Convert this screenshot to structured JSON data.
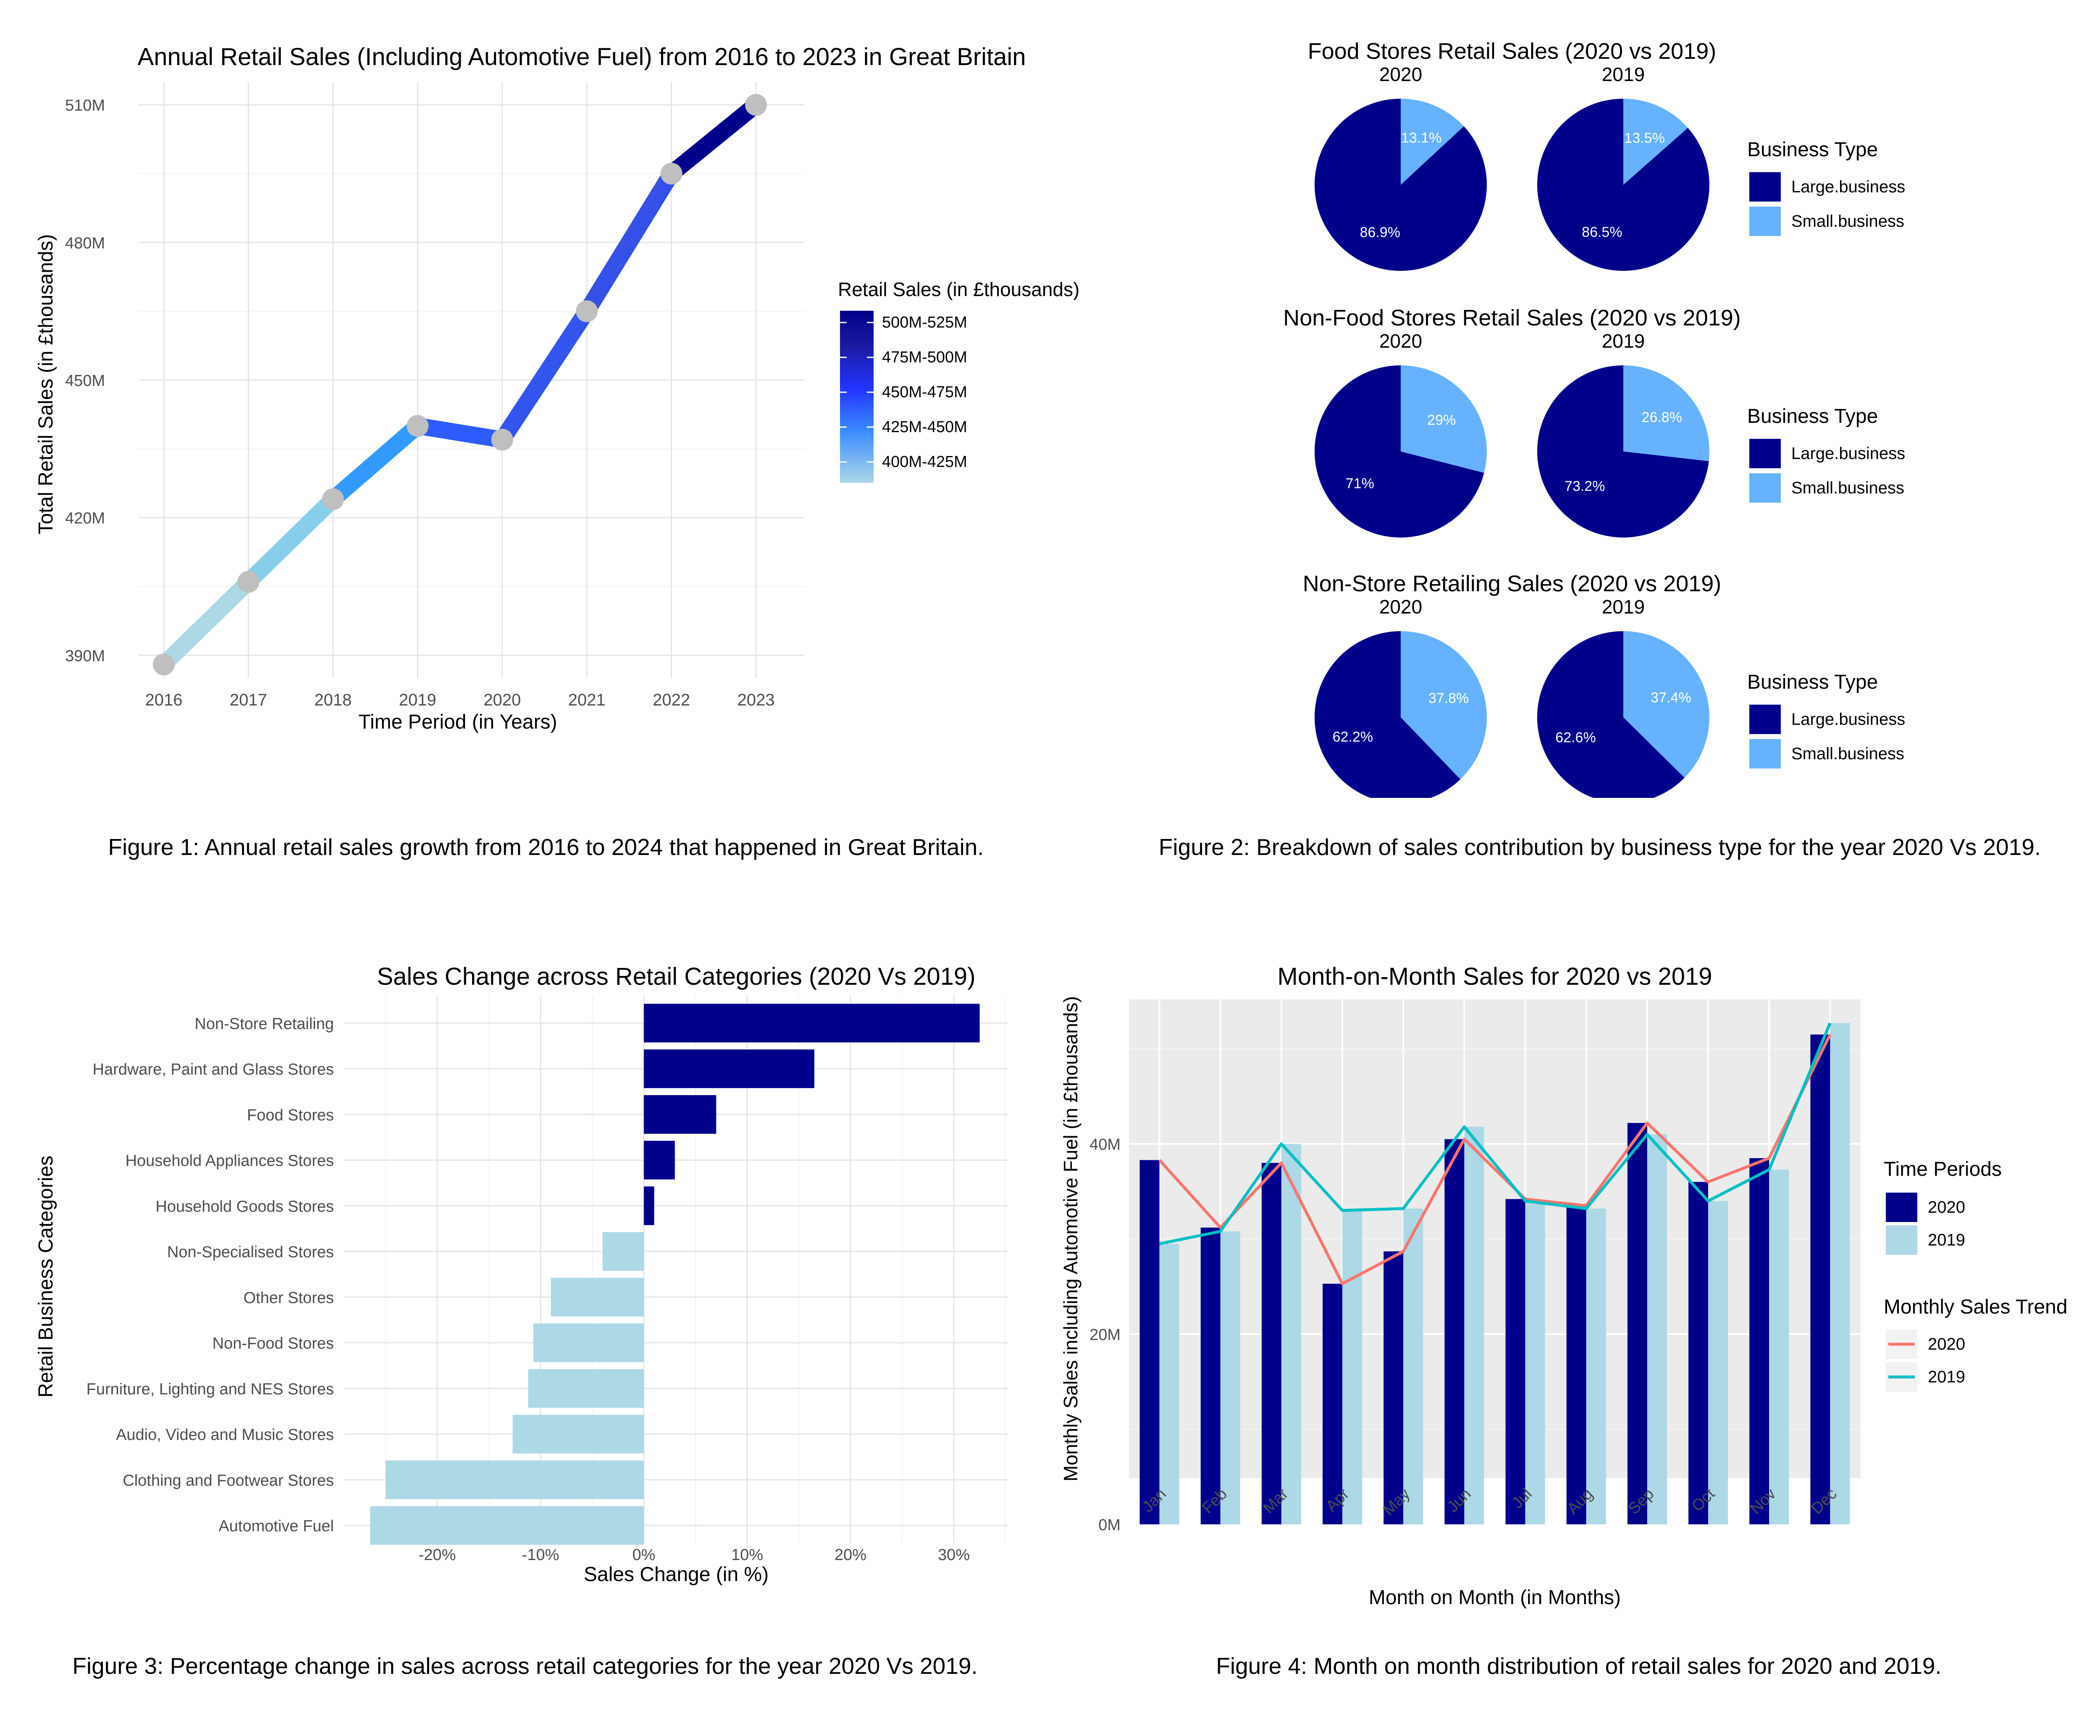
{
  "figures": {
    "fig1": {
      "caption": "Figure 1: Annual retail sales growth from 2016 to 2024 that happened in Great Britain.",
      "chart_data": {
        "type": "line",
        "title": "Annual Retail Sales (Including Automotive Fuel) from 2016 to 2023 in Great Britain",
        "xlabel": "Time Period (in Years)",
        "ylabel": "Total Retail Sales (in £thousands)",
        "x": [
          "2016",
          "2017",
          "2018",
          "2019",
          "2020",
          "2021",
          "2022",
          "2023"
        ],
        "values": [
          388,
          406,
          424,
          440,
          437,
          465,
          495,
          510
        ],
        "ylim": [
          385,
          515
        ],
        "yticks": [
          390,
          420,
          450,
          480,
          510
        ],
        "ytick_labels": [
          "390M",
          "420M",
          "450M",
          "480M",
          "510M"
        ],
        "legend": {
          "title": "Retail Sales (in £thousands)",
          "position": "right",
          "items": [
            "500M-525M",
            "475M-500M",
            "450M-475M",
            "425M-450M",
            "400M-425M"
          ]
        },
        "segment_colors": [
          "#add8e6",
          "#87ceeb",
          "#3399ff",
          "#2e5cff",
          "#3355ee",
          "#3550e6",
          "#00008b"
        ],
        "point_color": "#bfbfbf",
        "grid": true
      }
    },
    "fig2": {
      "caption": "Figure 2: Breakdown of sales contribution by business type for the year 2020 Vs 2019.",
      "chart_data": [
        {
          "type": "pie",
          "title": "Food Stores Retail Sales (2020 vs 2019)",
          "pies": [
            {
              "label": "2020",
              "slices": [
                {
                  "name": "Large.business",
                  "value": 86.9,
                  "label": "86.9%"
                },
                {
                  "name": "Small.business",
                  "value": 13.1,
                  "label": "13.1%"
                }
              ]
            },
            {
              "label": "2019",
              "slices": [
                {
                  "name": "Large.business",
                  "value": 86.5,
                  "label": "86.5%"
                },
                {
                  "name": "Small.business",
                  "value": 13.5,
                  "label": "13.5%"
                }
              ]
            }
          ],
          "legend": {
            "title": "Business Type",
            "position": "right",
            "items": [
              "Large.business",
              "Small.business"
            ]
          }
        },
        {
          "type": "pie",
          "title": "Non-Food Stores Retail Sales (2020 vs 2019)",
          "pies": [
            {
              "label": "2020",
              "slices": [
                {
                  "name": "Large.business",
                  "value": 71,
                  "label": "71%"
                },
                {
                  "name": "Small.business",
                  "value": 29,
                  "label": "29%"
                }
              ]
            },
            {
              "label": "2019",
              "slices": [
                {
                  "name": "Large.business",
                  "value": 73.2,
                  "label": "73.2%"
                },
                {
                  "name": "Small.business",
                  "value": 26.8,
                  "label": "26.8%"
                }
              ]
            }
          ],
          "legend": {
            "title": "Business Type",
            "position": "right",
            "items": [
              "Large.business",
              "Small.business"
            ]
          }
        },
        {
          "type": "pie",
          "title": "Non-Store Retailing Sales (2020 vs 2019)",
          "pies": [
            {
              "label": "2020",
              "slices": [
                {
                  "name": "Large.business",
                  "value": 62.2,
                  "label": "62.2%"
                },
                {
                  "name": "Small.business",
                  "value": 37.8,
                  "label": "37.8%"
                }
              ]
            },
            {
              "label": "2019",
              "slices": [
                {
                  "name": "Large.business",
                  "value": 62.6,
                  "label": "62.6%"
                },
                {
                  "name": "Small.business",
                  "value": 37.4,
                  "label": "37.4%"
                }
              ]
            }
          ],
          "legend": {
            "title": "Business Type",
            "position": "right",
            "items": [
              "Large.business",
              "Small.business"
            ]
          }
        }
      ],
      "colors": {
        "large": "#00008b",
        "small": "#66b2ff"
      }
    },
    "fig3": {
      "caption": "Figure 3: Percentage change in sales across retail categories for the year 2020 Vs 2019.",
      "chart_data": {
        "type": "bar",
        "orientation": "horizontal",
        "title": "Sales Change across Retail Categories (2020 Vs 2019)",
        "xlabel": "Sales Change (in %)",
        "ylabel": "Retail Business Categories",
        "categories": [
          "Non-Store Retailing",
          "Hardware, Paint and Glass Stores",
          "Food Stores",
          "Household Appliances Stores",
          "Household Goods Stores",
          "Non-Specialised Stores",
          "Other Stores",
          "Non-Food Stores",
          "Furniture, Lighting and NES Stores",
          "Audio, Video and Music Stores",
          "Clothing and Footwear Stores",
          "Automotive Fuel"
        ],
        "values": [
          32.5,
          16.5,
          7,
          3,
          1,
          -4,
          -9,
          -10.7,
          -11.2,
          -12.7,
          -25,
          -26.5
        ],
        "xlim": [
          -28,
          35
        ],
        "xticks": [
          -20,
          -10,
          0,
          10,
          20,
          30
        ],
        "xtick_labels": [
          "-20%",
          "-10%",
          "0%",
          "10%",
          "20%",
          "30%"
        ],
        "colors": {
          "positive": "#00008b",
          "negative": "#add8e6"
        },
        "grid": true
      }
    },
    "fig4": {
      "caption": "Figure 4: Month on month distribution of retail sales for 2020 and 2019.",
      "chart_data": {
        "type": "bar",
        "title": "Month-on-Month Sales for 2020 vs 2019",
        "xlabel": "Month on Month (in Months)",
        "ylabel": "Monthly Sales including Automotive Fuel (in £thousands)",
        "categories": [
          "Jan",
          "Feb",
          "Mar",
          "Apr",
          "May",
          "Jun",
          "Jul",
          "Aug",
          "Sep",
          "Oct",
          "Nov",
          "Dec"
        ],
        "series": [
          {
            "name": "2020",
            "type": "bar",
            "values": [
              38.3,
              31.2,
              38.0,
              25.3,
              28.7,
              40.5,
              34.2,
              33.5,
              42.2,
              36.0,
              38.5,
              51.5
            ]
          },
          {
            "name": "2019",
            "type": "bar",
            "values": [
              29.5,
              30.8,
              40.0,
              33.0,
              33.2,
              41.8,
              34.0,
              33.2,
              41.0,
              34.0,
              37.3,
              52.7
            ]
          },
          {
            "name": "2020",
            "type": "line",
            "values": [
              38.3,
              31.2,
              38.0,
              25.3,
              28.7,
              40.5,
              34.2,
              33.5,
              42.2,
              36.0,
              38.5,
              51.5
            ]
          },
          {
            "name": "2019",
            "type": "line",
            "values": [
              29.5,
              30.8,
              40.0,
              33.0,
              33.2,
              41.8,
              34.0,
              33.2,
              41.0,
              34.0,
              37.3,
              52.7
            ]
          }
        ],
        "ylim": [
          -1.5,
          55
        ],
        "yticks": [
          0,
          20,
          40
        ],
        "ytick_labels": [
          "0M",
          "20M",
          "40M"
        ],
        "legends": [
          {
            "title": "Time Periods",
            "items": [
              "2020",
              "2019"
            ]
          },
          {
            "title": "Monthly Sales Trend",
            "items": [
              "2020",
              "2019"
            ]
          }
        ],
        "colors": {
          "bar2020": "#00008b",
          "bar2019": "#add8e6",
          "line2020": "#f8766d",
          "line2019": "#00bfc4",
          "panel": "#ebebeb"
        },
        "grid": true
      }
    }
  }
}
